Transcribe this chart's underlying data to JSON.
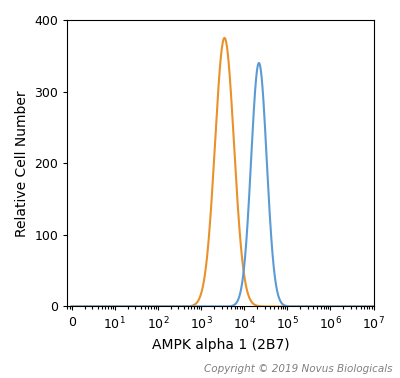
{
  "xlabel": "AMPK alpha 1 (2B7)",
  "ylabel": "Relative Cell Number",
  "copyright": "Copyright © 2019 Novus Biologicals",
  "ylim": [
    0,
    400
  ],
  "xlim_log": [
    0.8,
    10000000.0
  ],
  "orange_peak_x": 3500,
  "orange_peak_y": 375,
  "orange_sigma": 0.22,
  "blue_peak_x": 22000,
  "blue_peak_y": 340,
  "blue_sigma": 0.18,
  "orange_color": "#E8922A",
  "blue_color": "#5B9BD5",
  "background_color": "#FFFFFF",
  "tick_label_size": 9,
  "axis_label_size": 10,
  "copyright_size": 7.5
}
